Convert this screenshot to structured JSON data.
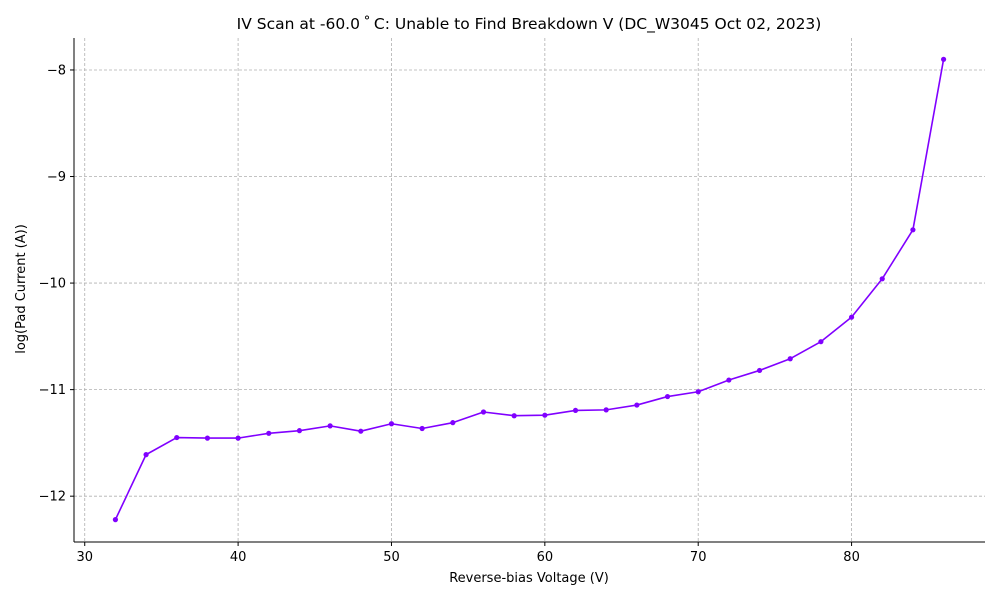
{
  "chart_data": {
    "type": "line",
    "title": "IV Scan at -60.0$^\\circ$C: Unable to Find Breakdown V (DC_W3045 Oct 02, 2023)",
    "title_display": "IV Scan at -60.0 ˚ C: Unable to Find Breakdown V (DC_W3045 Oct 02, 2023)",
    "xlabel": "Reverse-bias Voltage (V)",
    "ylabel": "log(Pad Current (A))",
    "xlim": [
      29.3,
      88.7
    ],
    "ylim": [
      -12.43,
      -7.7
    ],
    "xticks": [
      30,
      40,
      50,
      60,
      70,
      80
    ],
    "xtick_labels": [
      "30",
      "40",
      "50",
      "60",
      "70",
      "80"
    ],
    "yticks": [
      -12,
      -11,
      -10,
      -9,
      -8
    ],
    "ytick_labels": [
      "−12",
      "−11",
      "−10",
      "−9",
      "−8"
    ],
    "grid": true,
    "line_color": "#8000ff",
    "series": [
      {
        "x": [
          32,
          34,
          36,
          38,
          40,
          42,
          44,
          46,
          48,
          50,
          52,
          54,
          56,
          58,
          60,
          62,
          64,
          66,
          68,
          70,
          72,
          74,
          76,
          78,
          80,
          82,
          84,
          86
        ],
        "y": [
          -12.22,
          -11.61,
          -11.45,
          -11.455,
          -11.455,
          -11.41,
          -11.385,
          -11.34,
          -11.39,
          -11.32,
          -11.365,
          -11.31,
          -11.21,
          -11.245,
          -11.24,
          -11.195,
          -11.19,
          -11.145,
          -11.065,
          -11.02,
          -10.91,
          -10.82,
          -10.71,
          -10.55,
          -10.32,
          -9.96,
          -9.5,
          -7.9
        ]
      }
    ]
  }
}
